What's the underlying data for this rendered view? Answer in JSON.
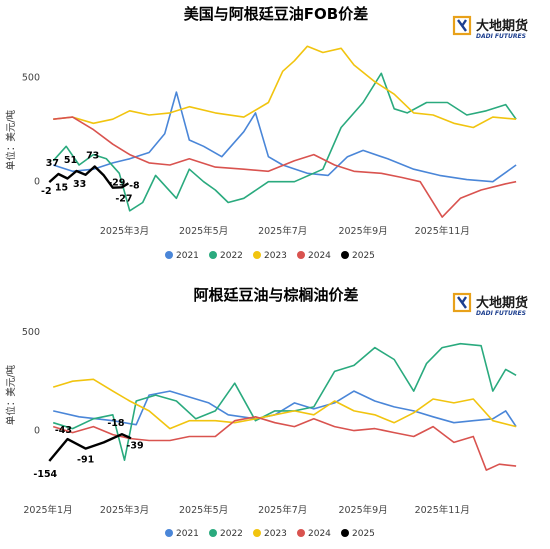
{
  "brand": {
    "name_cn": "大地期货",
    "name_en": "DADI FUTURES",
    "colors": [
      "#e8a11a",
      "#1d3f8f"
    ]
  },
  "chart_data": [
    {
      "type": "line",
      "title": "美国与阿根廷豆油FOB价差",
      "ylabel": "单位：美元/吨",
      "y_ticks": [
        0,
        500
      ],
      "ylim": [
        -160,
        680
      ],
      "x_domain": [
        "2025-01-01",
        "2025-12-31"
      ],
      "x_ticks": [
        "2025年3月",
        "2025年5月",
        "2025年7月",
        "2025年9月",
        "2025年11月"
      ],
      "legend_position": "bottom",
      "grid": false,
      "series": [
        {
          "name": "2021",
          "color": "#4a86d8",
          "points": [
            [
              "2025-01-05",
              80
            ],
            [
              "2025-01-20",
              50
            ],
            [
              "2025-02-05",
              60
            ],
            [
              "2025-02-20",
              90
            ],
            [
              "2025-03-05",
              110
            ],
            [
              "2025-03-20",
              140
            ],
            [
              "2025-04-01",
              230
            ],
            [
              "2025-04-10",
              430
            ],
            [
              "2025-04-20",
              200
            ],
            [
              "2025-05-01",
              170
            ],
            [
              "2025-05-15",
              120
            ],
            [
              "2025-06-01",
              240
            ],
            [
              "2025-06-10",
              330
            ],
            [
              "2025-06-20",
              120
            ],
            [
              "2025-07-01",
              80
            ],
            [
              "2025-07-20",
              40
            ],
            [
              "2025-08-05",
              30
            ],
            [
              "2025-08-20",
              120
            ],
            [
              "2025-09-01",
              150
            ],
            [
              "2025-09-20",
              110
            ],
            [
              "2025-10-10",
              60
            ],
            [
              "2025-10-30",
              30
            ],
            [
              "2025-11-20",
              10
            ],
            [
              "2025-12-10",
              0
            ],
            [
              "2025-12-28",
              80
            ]
          ]
        },
        {
          "name": "2022",
          "color": "#2aaa7e",
          "points": [
            [
              "2025-01-05",
              100
            ],
            [
              "2025-01-15",
              170
            ],
            [
              "2025-01-25",
              80
            ],
            [
              "2025-02-05",
              130
            ],
            [
              "2025-02-15",
              110
            ],
            [
              "2025-02-25",
              40
            ],
            [
              "2025-03-05",
              -140
            ],
            [
              "2025-03-15",
              -100
            ],
            [
              "2025-03-25",
              30
            ],
            [
              "2025-04-10",
              -80
            ],
            [
              "2025-04-20",
              60
            ],
            [
              "2025-05-01",
              0
            ],
            [
              "2025-05-10",
              -40
            ],
            [
              "2025-05-20",
              -100
            ],
            [
              "2025-06-01",
              -80
            ],
            [
              "2025-06-20",
              0
            ],
            [
              "2025-07-10",
              0
            ],
            [
              "2025-08-01",
              60
            ],
            [
              "2025-08-15",
              260
            ],
            [
              "2025-09-01",
              380
            ],
            [
              "2025-09-15",
              520
            ],
            [
              "2025-09-25",
              350
            ],
            [
              "2025-10-05",
              330
            ],
            [
              "2025-10-20",
              380
            ],
            [
              "2025-11-05",
              380
            ],
            [
              "2025-11-20",
              320
            ],
            [
              "2025-12-05",
              340
            ],
            [
              "2025-12-20",
              370
            ],
            [
              "2025-12-28",
              300
            ]
          ]
        },
        {
          "name": "2023",
          "color": "#f1c40f",
          "points": [
            [
              "2025-01-05",
              300
            ],
            [
              "2025-01-20",
              310
            ],
            [
              "2025-02-05",
              280
            ],
            [
              "2025-02-20",
              300
            ],
            [
              "2025-03-05",
              340
            ],
            [
              "2025-03-20",
              320
            ],
            [
              "2025-04-05",
              330
            ],
            [
              "2025-04-20",
              360
            ],
            [
              "2025-05-10",
              330
            ],
            [
              "2025-06-01",
              310
            ],
            [
              "2025-06-20",
              380
            ],
            [
              "2025-07-01",
              530
            ],
            [
              "2025-07-10",
              580
            ],
            [
              "2025-07-20",
              650
            ],
            [
              "2025-08-01",
              620
            ],
            [
              "2025-08-15",
              640
            ],
            [
              "2025-08-25",
              560
            ],
            [
              "2025-09-10",
              480
            ],
            [
              "2025-09-25",
              420
            ],
            [
              "2025-10-10",
              330
            ],
            [
              "2025-10-25",
              320
            ],
            [
              "2025-11-10",
              280
            ],
            [
              "2025-11-25",
              260
            ],
            [
              "2025-12-10",
              310
            ],
            [
              "2025-12-28",
              300
            ]
          ]
        },
        {
          "name": "2024",
          "color": "#d9534f",
          "points": [
            [
              "2025-01-05",
              300
            ],
            [
              "2025-01-20",
              310
            ],
            [
              "2025-02-05",
              250
            ],
            [
              "2025-02-20",
              180
            ],
            [
              "2025-03-05",
              130
            ],
            [
              "2025-03-20",
              90
            ],
            [
              "2025-04-05",
              80
            ],
            [
              "2025-04-20",
              110
            ],
            [
              "2025-05-10",
              70
            ],
            [
              "2025-06-01",
              60
            ],
            [
              "2025-06-20",
              50
            ],
            [
              "2025-07-10",
              100
            ],
            [
              "2025-07-25",
              130
            ],
            [
              "2025-08-10",
              80
            ],
            [
              "2025-08-25",
              50
            ],
            [
              "2025-09-15",
              40
            ],
            [
              "2025-10-01",
              20
            ],
            [
              "2025-10-15",
              0
            ],
            [
              "2025-11-01",
              -170
            ],
            [
              "2025-11-15",
              -80
            ],
            [
              "2025-12-01",
              -40
            ],
            [
              "2025-12-20",
              -10
            ],
            [
              "2025-12-28",
              0
            ]
          ]
        },
        {
          "name": "2025",
          "color": "#000000",
          "points": [
            [
              "2025-01-02",
              -2
            ],
            [
              "2025-01-09",
              37
            ],
            [
              "2025-01-16",
              15
            ],
            [
              "2025-01-23",
              51
            ],
            [
              "2025-01-30",
              33
            ],
            [
              "2025-02-06",
              73
            ],
            [
              "2025-02-13",
              30
            ],
            [
              "2025-02-20",
              -29
            ],
            [
              "2025-02-27",
              -27
            ],
            [
              "2025-03-04",
              -8
            ]
          ]
        }
      ],
      "data_labels": [
        "-2",
        "37",
        "15",
        "51",
        "33",
        "73",
        "-29",
        "-27",
        "-8"
      ]
    },
    {
      "type": "line",
      "title": "阿根廷豆油与棕榈油价差",
      "ylabel": "单位：美元/吨",
      "y_ticks": [
        0,
        500
      ],
      "ylim": [
        -240,
        560
      ],
      "x_domain": [
        "2025-01-01",
        "2025-12-31"
      ],
      "x_ticks": [
        "2025年1月",
        "2025年3月",
        "2025年5月",
        "2025年7月",
        "2025年9月",
        "2025年11月"
      ],
      "legend_position": "bottom",
      "grid": false,
      "series": [
        {
          "name": "2021",
          "color": "#4a86d8",
          "points": [
            [
              "2025-01-05",
              100
            ],
            [
              "2025-01-25",
              70
            ],
            [
              "2025-02-20",
              50
            ],
            [
              "2025-03-10",
              30
            ],
            [
              "2025-03-20",
              180
            ],
            [
              "2025-04-05",
              200
            ],
            [
              "2025-04-20",
              170
            ],
            [
              "2025-05-05",
              140
            ],
            [
              "2025-05-20",
              80
            ],
            [
              "2025-06-10",
              60
            ],
            [
              "2025-06-25",
              80
            ],
            [
              "2025-07-10",
              140
            ],
            [
              "2025-07-25",
              110
            ],
            [
              "2025-08-10",
              140
            ],
            [
              "2025-08-25",
              200
            ],
            [
              "2025-09-10",
              150
            ],
            [
              "2025-09-25",
              120
            ],
            [
              "2025-10-10",
              100
            ],
            [
              "2025-10-25",
              70
            ],
            [
              "2025-11-10",
              40
            ],
            [
              "2025-11-25",
              50
            ],
            [
              "2025-12-10",
              60
            ],
            [
              "2025-12-20",
              100
            ],
            [
              "2025-12-28",
              20
            ]
          ]
        },
        {
          "name": "2022",
          "color": "#2aaa7e",
          "points": [
            [
              "2025-01-05",
              40
            ],
            [
              "2025-01-20",
              10
            ],
            [
              "2025-02-05",
              60
            ],
            [
              "2025-02-20",
              80
            ],
            [
              "2025-03-01",
              -150
            ],
            [
              "2025-03-10",
              150
            ],
            [
              "2025-03-25",
              180
            ],
            [
              "2025-04-10",
              150
            ],
            [
              "2025-04-25",
              60
            ],
            [
              "2025-05-10",
              100
            ],
            [
              "2025-05-25",
              240
            ],
            [
              "2025-06-10",
              50
            ],
            [
              "2025-06-25",
              100
            ],
            [
              "2025-07-10",
              100
            ],
            [
              "2025-07-25",
              120
            ],
            [
              "2025-08-10",
              300
            ],
            [
              "2025-08-25",
              330
            ],
            [
              "2025-09-10",
              420
            ],
            [
              "2025-09-25",
              360
            ],
            [
              "2025-10-10",
              200
            ],
            [
              "2025-10-20",
              340
            ],
            [
              "2025-11-01",
              420
            ],
            [
              "2025-11-15",
              440
            ],
            [
              "2025-12-01",
              430
            ],
            [
              "2025-12-10",
              200
            ],
            [
              "2025-12-20",
              310
            ],
            [
              "2025-12-28",
              280
            ]
          ]
        },
        {
          "name": "2023",
          "color": "#f1c40f",
          "points": [
            [
              "2025-01-05",
              220
            ],
            [
              "2025-01-20",
              250
            ],
            [
              "2025-02-05",
              260
            ],
            [
              "2025-02-20",
              200
            ],
            [
              "2025-03-05",
              150
            ],
            [
              "2025-03-20",
              100
            ],
            [
              "2025-04-05",
              10
            ],
            [
              "2025-04-20",
              50
            ],
            [
              "2025-05-10",
              50
            ],
            [
              "2025-05-25",
              40
            ],
            [
              "2025-06-10",
              60
            ],
            [
              "2025-06-25",
              80
            ],
            [
              "2025-07-10",
              100
            ],
            [
              "2025-07-25",
              80
            ],
            [
              "2025-08-10",
              150
            ],
            [
              "2025-08-25",
              100
            ],
            [
              "2025-09-10",
              80
            ],
            [
              "2025-09-25",
              40
            ],
            [
              "2025-10-10",
              90
            ],
            [
              "2025-10-25",
              160
            ],
            [
              "2025-11-10",
              140
            ],
            [
              "2025-11-25",
              160
            ],
            [
              "2025-12-10",
              50
            ],
            [
              "2025-12-28",
              20
            ]
          ]
        },
        {
          "name": "2024",
          "color": "#d9534f",
          "points": [
            [
              "2025-01-05",
              20
            ],
            [
              "2025-01-20",
              -10
            ],
            [
              "2025-02-05",
              20
            ],
            [
              "2025-02-20",
              -20
            ],
            [
              "2025-03-05",
              -40
            ],
            [
              "2025-03-20",
              -50
            ],
            [
              "2025-04-05",
              -50
            ],
            [
              "2025-04-20",
              -30
            ],
            [
              "2025-05-10",
              -30
            ],
            [
              "2025-05-25",
              50
            ],
            [
              "2025-06-10",
              70
            ],
            [
              "2025-06-25",
              40
            ],
            [
              "2025-07-10",
              20
            ],
            [
              "2025-07-25",
              60
            ],
            [
              "2025-08-10",
              20
            ],
            [
              "2025-08-25",
              0
            ],
            [
              "2025-09-10",
              10
            ],
            [
              "2025-09-25",
              -10
            ],
            [
              "2025-10-10",
              -30
            ],
            [
              "2025-10-25",
              20
            ],
            [
              "2025-11-10",
              -60
            ],
            [
              "2025-11-25",
              -30
            ],
            [
              "2025-12-05",
              -200
            ],
            [
              "2025-12-15",
              -170
            ],
            [
              "2025-12-28",
              -180
            ]
          ]
        },
        {
          "name": "2025",
          "color": "#000000",
          "points": [
            [
              "2025-01-02",
              -154
            ],
            [
              "2025-01-16",
              -43
            ],
            [
              "2025-01-30",
              -91
            ],
            [
              "2025-02-13",
              -60
            ],
            [
              "2025-02-27",
              -18
            ],
            [
              "2025-03-06",
              -39
            ]
          ]
        }
      ],
      "data_labels": [
        "-154",
        "-43",
        "-91",
        "-18",
        "-39"
      ]
    }
  ]
}
